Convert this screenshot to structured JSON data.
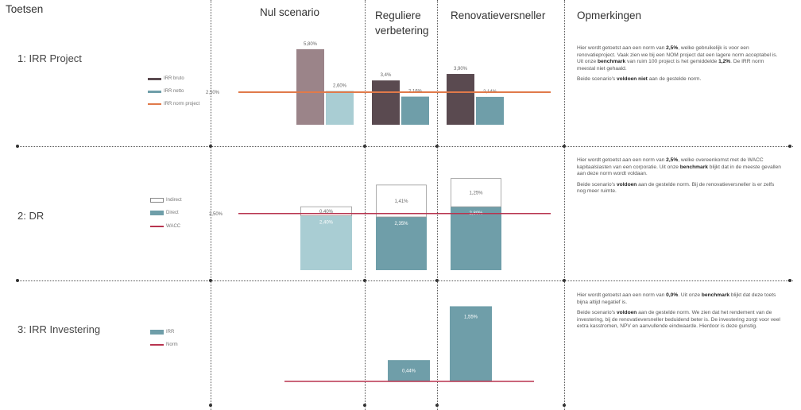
{
  "headers": {
    "toetsen": "Toetsen",
    "nul": "Nul scenario",
    "regulier_1": "Reguliere",
    "regulier_2": "verbetering",
    "renovatie": "Renovatieversneller",
    "opmerkingen": "Opmerkingen"
  },
  "rows": [
    {
      "label": "1: IRR Project",
      "legend": [
        "IRR bruto",
        "IRR netto",
        "IRR norm project"
      ],
      "remark_p1_parts": [
        "Hier wordt getoetst aan een norm van ",
        "2,5%",
        ", welke gebruikelijk is voor een renovatieproject. Vaak zien we bij een NOM project dat een lagere norm acceptabel is. Uit onze ",
        "benchmark",
        " van ruim 100 project is het gemiddelde ",
        "1,2%",
        ". De IRR norm meestal niet gehaald."
      ],
      "remark_p2_parts": [
        "Beide scenario's ",
        "voldoen niet",
        " aan de gestelde norm."
      ]
    },
    {
      "label": "2: DR",
      "legend": [
        "Indirect",
        "Direct",
        "WACC"
      ],
      "remark_p1_parts": [
        "Hier wordt getoetst aan een norm van ",
        "2,5%",
        ", welke overeenkomst met de WACC kapitaalslasten van een corporatie. Uit onze ",
        "benchmark",
        " blijkt dat in de meeste gevallen aan deze norm wordt voldaan."
      ],
      "remark_p2_parts": [
        "Beide scenario's ",
        "voldoen",
        " aan de gestelde norm. Bij de renovatieversneller is er zelfs nog meer ruimte."
      ]
    },
    {
      "label": "3: IRR Investering",
      "legend": [
        "IRR",
        "Norm"
      ],
      "remark_p1_parts": [
        "Hier wordt getoetst aan een norm van ",
        "0,0%",
        ". Uit onze ",
        "benchmark",
        " blijkt dat deze toets bijna altijd negatief is."
      ],
      "remark_p2_parts": [
        "Beide scenario's ",
        "voldoen",
        " aan de gestelde norm. We zien dat het rendement van de investering, bij de renovatieversneller beduidend beter is. De investering zorgt voor veel extra kasstromen, NPV en aanvullende eindwaarde. Hierdoor is deze gunstig."
      ]
    }
  ],
  "chart_data": [
    {
      "type": "bar",
      "title": "1: IRR Project",
      "categories": [
        "Nul scenario",
        "Reguliere verbetering",
        "Renovatieversneller"
      ],
      "series": [
        {
          "name": "IRR bruto",
          "values": [
            5.8,
            3.4,
            3.9
          ],
          "labels": [
            "5,80%",
            "3,4%",
            "3,90%"
          ],
          "color": "#9b8489"
        },
        {
          "name": "IRR netto",
          "values": [
            2.6,
            2.16,
            2.14
          ],
          "labels": [
            "2,60%",
            "2,16%",
            "2,14%"
          ],
          "color": "#6f9ea9"
        }
      ],
      "special_colors": {
        "nul_netto": "#a9cdd3",
        "bruto_dark": "#5a4a50"
      },
      "norm": {
        "name": "IRR norm project",
        "value": 2.5,
        "label": "2,50%",
        "color": "#e07a4a"
      }
    },
    {
      "type": "bar",
      "stacked": true,
      "title": "2: DR",
      "categories": [
        "Nul scenario",
        "Reguliere verbetering",
        "Renovatieversneller"
      ],
      "series": [
        {
          "name": "Direct",
          "values": [
            2.4,
            2.35,
            2.8
          ],
          "labels": [
            "2,40%",
            "2,35%",
            "2,80%"
          ],
          "color": "#6f9ea9"
        },
        {
          "name": "Indirect",
          "values": [
            0.4,
            1.41,
            1.25
          ],
          "labels": [
            "0,40%",
            "1,41%",
            "1,25%"
          ],
          "color": "#ffffff"
        }
      ],
      "special_colors": {
        "nul_direct": "#a9cdd3"
      },
      "norm": {
        "name": "WACC",
        "value": 2.5,
        "label": "2,50%",
        "color": "#b8344f"
      }
    },
    {
      "type": "bar",
      "title": "3: IRR Investering",
      "categories": [
        "Nul scenario",
        "Reguliere verbetering",
        "Renovatieversneller"
      ],
      "series": [
        {
          "name": "IRR",
          "values": [
            null,
            0.44,
            1.55
          ],
          "labels": [
            "",
            "0,44%",
            "1,55%"
          ],
          "color": "#6f9ea9"
        }
      ],
      "norm": {
        "name": "Norm",
        "value": 0.0,
        "label": "",
        "color": "#b8344f"
      }
    }
  ]
}
